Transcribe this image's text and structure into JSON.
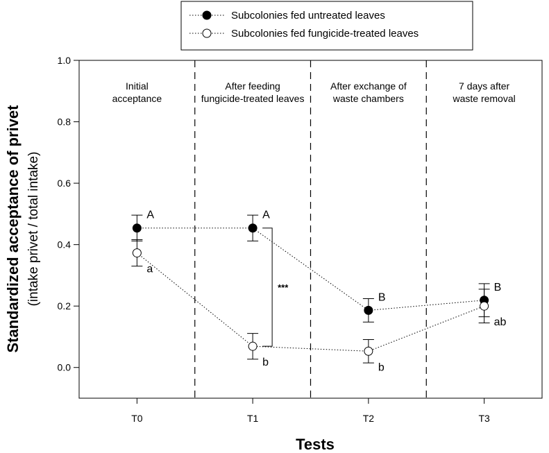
{
  "chart_data": {
    "type": "line",
    "categories": [
      "T0",
      "T1",
      "T2",
      "T3"
    ],
    "x_min": -0.5,
    "x_max": 3.5,
    "ylim": [
      -0.1,
      1.0
    ],
    "yticks": [
      0.0,
      0.2,
      0.4,
      0.6,
      0.8,
      1.0
    ],
    "ytick_labels": [
      "0.0",
      "0.2",
      "0.4",
      "0.6",
      "0.8",
      "1.0"
    ],
    "xlabel": "Tests",
    "ylabel": "Standardized acceptance of privet",
    "ylabel_sub": "(intake privet / total intake)",
    "phase_dividers": [
      0.5,
      1.5,
      2.5
    ],
    "phases": [
      {
        "index": 0,
        "lines": [
          "Initial",
          "acceptance"
        ]
      },
      {
        "index": 1,
        "lines": [
          "After feeding",
          "fungicide-treated leaves"
        ]
      },
      {
        "index": 2,
        "lines": [
          "After exchange of",
          "waste chambers"
        ]
      },
      {
        "index": 3,
        "lines": [
          "7 days after",
          "waste removal"
        ]
      }
    ],
    "series": [
      {
        "name": "Subcolonies fed untreated leaves",
        "marker": "filled",
        "values": [
          0.454,
          0.454,
          0.186,
          0.219
        ],
        "errors": [
          0.042,
          0.042,
          0.038,
          0.054
        ],
        "letters": [
          "A",
          "A",
          "B",
          "B"
        ]
      },
      {
        "name": "Subcolonies fed fungicide-treated leaves",
        "marker": "open",
        "values": [
          0.373,
          0.069,
          0.053,
          0.2
        ],
        "errors": [
          0.043,
          0.042,
          0.038,
          0.055
        ],
        "letters": [
          "a",
          "b",
          "b",
          "ab"
        ]
      }
    ],
    "significance": {
      "category_index": 1,
      "label": "***"
    },
    "legend_position": "top-center"
  }
}
